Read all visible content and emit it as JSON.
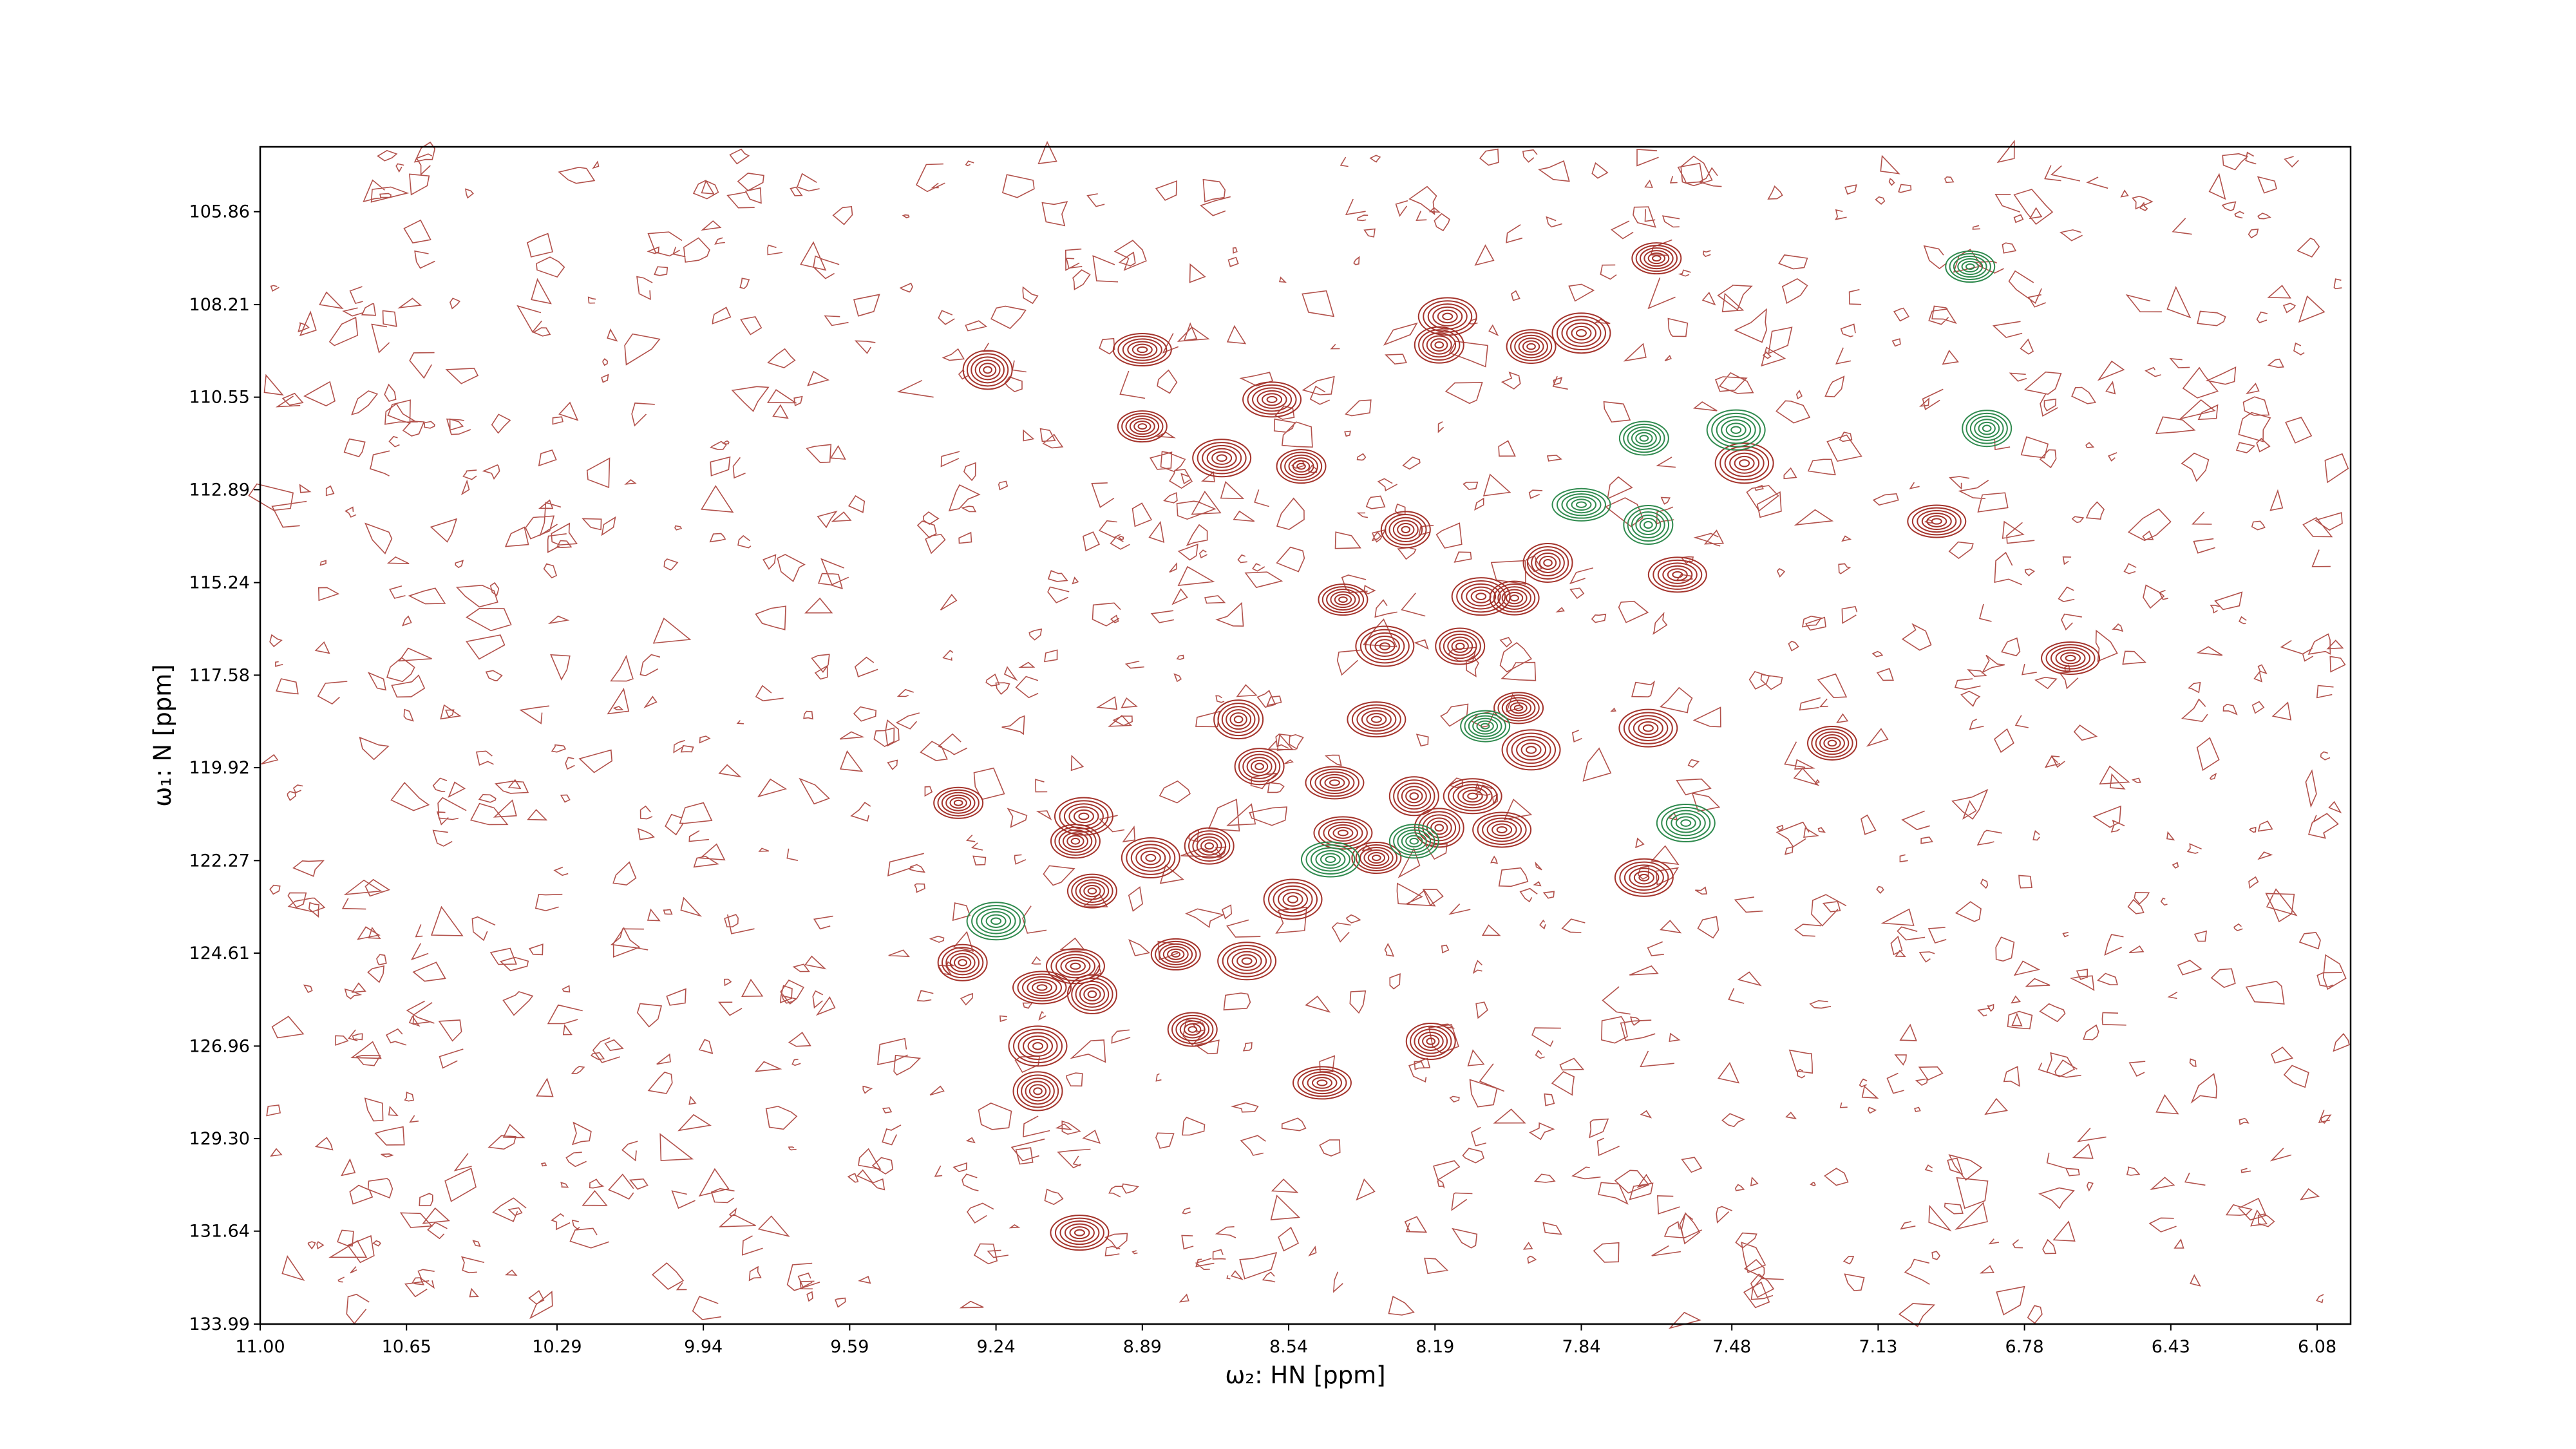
{
  "chart_data": {
    "type": "contour",
    "x_label": "ω₂: HN [ppm]",
    "y_label": "ω₁: N [ppm]",
    "xlim": [
      11.0,
      6.0
    ],
    "ylim": [
      133.99,
      104.22
    ],
    "xticks": [
      {
        "value": 11.0,
        "label": "11.00"
      },
      10.65,
      10.29,
      9.94,
      9.59,
      9.24,
      8.89,
      8.54,
      8.19,
      7.84,
      7.48,
      7.13,
      6.78,
      6.43,
      6.08
    ],
    "yticks": [
      105.86,
      108.21,
      110.55,
      112.89,
      115.24,
      117.58,
      119.92,
      122.27,
      124.61,
      126.96,
      {
        "value": 129.3,
        "label": "129.30"
      },
      131.64,
      133.99
    ],
    "series": [
      {
        "color": "#a4332b",
        "x": [
          7.66,
          8.16,
          7.96,
          7.84,
          8.18,
          8.89,
          9.26,
          8.58,
          8.89,
          8.7,
          8.51,
          7.45,
          8.26,
          6.99,
          7.92,
          7.61,
          8.41,
          8.08,
          8.0,
          8.31,
          8.13,
          6.67,
          8.66,
          8.33,
          7.99,
          7.68,
          7.24,
          7.96,
          8.61,
          8.43,
          8.24,
          8.1,
          9.33,
          9.03,
          9.05,
          8.87,
          8.73,
          8.41,
          8.18,
          8.03,
          8.33,
          7.69,
          9.01,
          8.53,
          9.32,
          9.13,
          9.01,
          9.05,
          8.81,
          8.64,
          8.77,
          9.14,
          8.2,
          8.46,
          9.14,
          9.04
        ],
        "values": [
          107.04,
          108.51,
          109.27,
          108.93,
          109.23,
          109.35,
          109.86,
          110.61,
          111.29,
          112.09,
          112.3,
          112.22,
          113.9,
          113.69,
          114.74,
          115.04,
          115.67,
          115.59,
          115.63,
          116.85,
          116.85,
          117.15,
          118.7,
          118.7,
          118.41,
          118.92,
          119.3,
          119.47,
          119.89,
          120.3,
          120.64,
          120.64,
          120.81,
          121.15,
          121.78,
          122.2,
          121.9,
          121.57,
          121.44,
          121.49,
          122.2,
          122.7,
          123.04,
          123.25,
          124.85,
          125.48,
          125.65,
          124.94,
          124.64,
          124.81,
          126.54,
          126.96,
          126.84,
          127.89,
          128.1,
          131.68
        ]
      },
      {
        "color": "#2f8a4e",
        "x": [
          6.91,
          9.24,
          7.69,
          7.47,
          6.87,
          7.84,
          7.68,
          8.44,
          8.07,
          7.59,
          8.24
        ],
        "values": [
          107.25,
          123.8,
          111.59,
          111.38,
          111.34,
          113.27,
          113.78,
          122.24,
          118.87,
          121.32,
          121.78
        ]
      }
    ]
  }
}
